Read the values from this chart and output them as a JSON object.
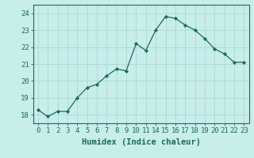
{
  "x": [
    0,
    1,
    2,
    3,
    4,
    5,
    6,
    7,
    8,
    9,
    10,
    11,
    14,
    15,
    16,
    17,
    18,
    19,
    20,
    21,
    22,
    23
  ],
  "y": [
    18.3,
    17.9,
    18.2,
    18.2,
    19.0,
    19.6,
    19.8,
    20.3,
    20.7,
    20.6,
    22.2,
    21.8,
    23.0,
    23.8,
    23.7,
    23.3,
    23.0,
    22.5,
    21.9,
    21.6,
    21.1,
    21.1
  ],
  "x_plot": [
    0,
    1,
    2,
    3,
    4,
    5,
    6,
    7,
    8,
    9,
    10,
    11,
    12,
    13,
    14,
    15,
    16,
    17,
    18,
    19,
    20,
    21
  ],
  "xtick_positions": [
    0,
    1,
    2,
    3,
    4,
    5,
    6,
    7,
    8,
    9,
    10,
    11,
    12,
    13,
    14,
    15,
    16,
    17,
    18,
    19,
    20,
    21
  ],
  "xtick_labels": [
    "0",
    "1",
    "2",
    "3",
    "4",
    "5",
    "6",
    "7",
    "8",
    "9",
    "10",
    "11",
    "14",
    "15",
    "16",
    "17",
    "18",
    "19",
    "20",
    "21",
    "22",
    "23"
  ],
  "yticks": [
    18,
    19,
    20,
    21,
    22,
    23,
    24
  ],
  "ylim": [
    17.5,
    24.5
  ],
  "xlim": [
    -0.5,
    21.5
  ],
  "xlabel": "Humidex (Indice chaleur)",
  "line_color": "#1a6b5a",
  "marker_color": "#1a6b5a",
  "bg_color": "#c8eeea",
  "grid_color": "#aad8d2",
  "tick_fontsize": 6.5,
  "label_fontsize": 7.5
}
